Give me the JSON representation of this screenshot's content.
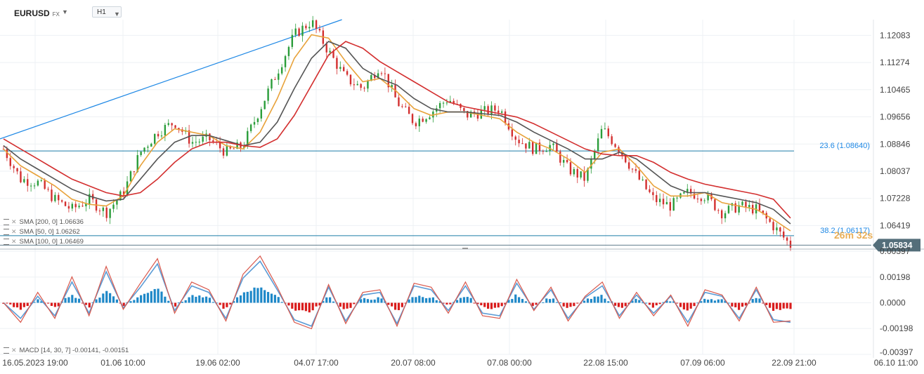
{
  "header": {
    "symbol": "EURUSD",
    "symbol_suffix": "FX",
    "timeframe": "H1"
  },
  "indicators": {
    "sma200": "SMA [200, 0] 1.06636",
    "sma50": "SMA [50, 0] 1.06262",
    "sma100": "SMA [100, 0] 1.06469",
    "macd": "MACD [14, 30, 7] -0.00141, -0.00151"
  },
  "countdown": "26m 32s",
  "colors": {
    "candle_up": "#2a9d3a",
    "candle_down": "#d32f2f",
    "sma_short": "#e8a23a",
    "sma_mid": "#555555",
    "sma_long": "#d32f2f",
    "trendline": "#1e88e5",
    "fib_line": "#1e7ea8",
    "price_badge": "#546e7a",
    "macd_line": "#d9584c",
    "signal_line": "#5b9bd5",
    "hist_pos": "#1e88c8",
    "hist_neg": "#d91c1c"
  },
  "chart_data": [
    {
      "type": "line",
      "title": "EURUSD H1",
      "x_tick_labels": [
        "16.05.2023 19:00",
        "01.06 10:00",
        "19.06 02:00",
        "04.07 17:00",
        "20.07 08:00",
        "07.08 00:00",
        "22.08 15:00",
        "07.09 06:00",
        "22.09 21:00",
        "06.10 11:00"
      ],
      "y_tick_labels": [
        "1.12083",
        "1.11274",
        "1.10465",
        "1.09656",
        "1.08846",
        "1.08037",
        "1.07228",
        "1.06419"
      ],
      "ylim": [
        1.0578,
        1.1255
      ],
      "grid": true,
      "current_price": "1.05834",
      "series": [
        {
          "name": "Price",
          "x": [
            0,
            0.02,
            0.04,
            0.06,
            0.08,
            0.1,
            0.12,
            0.14,
            0.16,
            0.18,
            0.2,
            0.22,
            0.24,
            0.26,
            0.28,
            0.3,
            0.32,
            0.34,
            0.36,
            0.38,
            0.4,
            0.42,
            0.44,
            0.46,
            0.48,
            0.5,
            0.52,
            0.54,
            0.56,
            0.58,
            0.6,
            0.62,
            0.64,
            0.66,
            0.68,
            0.7,
            0.72,
            0.74,
            0.76,
            0.78,
            0.8,
            0.82,
            0.84,
            0.86,
            0.88,
            0.9,
            0.92
          ],
          "values": [
            1.087,
            1.078,
            1.077,
            1.072,
            1.069,
            1.072,
            1.068,
            1.074,
            1.086,
            1.092,
            1.095,
            1.089,
            1.09,
            1.086,
            1.088,
            1.099,
            1.11,
            1.121,
            1.125,
            1.116,
            1.108,
            1.105,
            1.112,
            1.101,
            1.095,
            1.098,
            1.102,
            1.097,
            1.098,
            1.099,
            1.09,
            1.087,
            1.088,
            1.081,
            1.078,
            1.093,
            1.087,
            1.079,
            1.072,
            1.07,
            1.074,
            1.073,
            1.068,
            1.07,
            1.069,
            1.064,
            1.0583
          ]
        },
        {
          "name": "SMA 50",
          "values": [
            1.087,
            1.082,
            1.079,
            1.076,
            1.072,
            1.0705,
            1.07,
            1.073,
            1.082,
            1.089,
            1.093,
            1.092,
            1.091,
            1.088,
            1.087,
            1.092,
            1.102,
            1.114,
            1.121,
            1.12,
            1.113,
            1.107,
            1.108,
            1.104,
            1.099,
            1.097,
            1.098,
            1.098,
            1.097,
            1.096,
            1.092,
            1.089,
            1.087,
            1.084,
            1.08,
            1.086,
            1.087,
            1.082,
            1.076,
            1.073,
            1.073,
            1.074,
            1.071,
            1.07,
            1.069,
            1.066,
            1.0626
          ]
        },
        {
          "name": "SMA 100",
          "values": [
            1.088,
            1.084,
            1.081,
            1.078,
            1.075,
            1.073,
            1.0715,
            1.072,
            1.078,
            1.084,
            1.089,
            1.091,
            1.091,
            1.0895,
            1.088,
            1.089,
            1.095,
            1.105,
            1.114,
            1.119,
            1.117,
            1.111,
            1.108,
            1.106,
            1.102,
            1.099,
            1.098,
            1.098,
            1.0975,
            1.097,
            1.095,
            1.092,
            1.0895,
            1.087,
            1.084,
            1.084,
            1.086,
            1.084,
            1.08,
            1.076,
            1.074,
            1.074,
            1.073,
            1.072,
            1.071,
            1.069,
            1.0647
          ]
        },
        {
          "name": "SMA 200",
          "values": [
            1.09,
            1.087,
            1.084,
            1.081,
            1.078,
            1.076,
            1.074,
            1.073,
            1.074,
            1.078,
            1.083,
            1.087,
            1.089,
            1.089,
            1.088,
            1.0875,
            1.09,
            1.097,
            1.106,
            1.115,
            1.119,
            1.117,
            1.113,
            1.11,
            1.107,
            1.104,
            1.101,
            1.0995,
            1.0985,
            1.0975,
            1.0965,
            1.0945,
            1.092,
            1.0895,
            1.087,
            1.0855,
            1.085,
            1.085,
            1.083,
            1.08,
            1.078,
            1.0765,
            1.0755,
            1.0745,
            1.0735,
            1.072,
            1.0664
          ]
        }
      ],
      "trendline": {
        "start": [
          0.0,
          1.09
        ],
        "end": [
          0.43,
          1.1255
        ]
      },
      "fib_levels": [
        {
          "label": "23.6 (1.08640)",
          "value": 1.0864
        },
        {
          "label": "38.2 (1.06117)",
          "value": 1.06117
        }
      ]
    },
    {
      "type": "line",
      "title": "MACD [14, 30, 7]",
      "y_tick_labels": [
        "0.00397",
        "0.00198",
        "0.0000",
        "-0.00198",
        "-0.00397"
      ],
      "ylim": [
        -0.00397,
        0.00397
      ],
      "series": [
        {
          "name": "MACD",
          "values": [
            0.0,
            -0.0015,
            0.0008,
            -0.0012,
            0.002,
            -0.001,
            0.0028,
            -0.0005,
            0.0015,
            0.0034,
            -0.0008,
            0.0016,
            0.001,
            -0.0014,
            0.0022,
            0.0036,
            0.0012,
            -0.0015,
            -0.002,
            0.0014,
            -0.0016,
            0.0008,
            0.001,
            -0.0018,
            0.0015,
            0.0012,
            -0.0008,
            0.0016,
            -0.001,
            -0.0012,
            0.0018,
            -0.0006,
            0.0012,
            -0.0014,
            0.0005,
            0.0016,
            -0.0012,
            0.0008,
            -0.001,
            0.0006,
            -0.0018,
            0.001,
            0.0006,
            -0.0014,
            0.0012,
            -0.0015,
            -0.0014
          ]
        },
        {
          "name": "Signal",
          "values": [
            0.0,
            -0.0012,
            0.0005,
            -0.001,
            0.0016,
            -0.0008,
            0.0024,
            -0.0004,
            0.0012,
            0.003,
            -0.0006,
            0.0013,
            0.0008,
            -0.0012,
            0.0019,
            0.0032,
            0.001,
            -0.0013,
            -0.0018,
            0.0012,
            -0.0014,
            0.0006,
            0.0008,
            -0.0016,
            0.0013,
            0.001,
            -0.0006,
            0.0013,
            -0.0008,
            -0.001,
            0.0015,
            -0.0005,
            0.001,
            -0.0012,
            0.0004,
            0.0013,
            -0.001,
            0.0006,
            -0.0008,
            0.0005,
            -0.0015,
            0.0008,
            0.0005,
            -0.0012,
            0.001,
            -0.0013,
            -0.0015
          ]
        }
      ]
    }
  ]
}
